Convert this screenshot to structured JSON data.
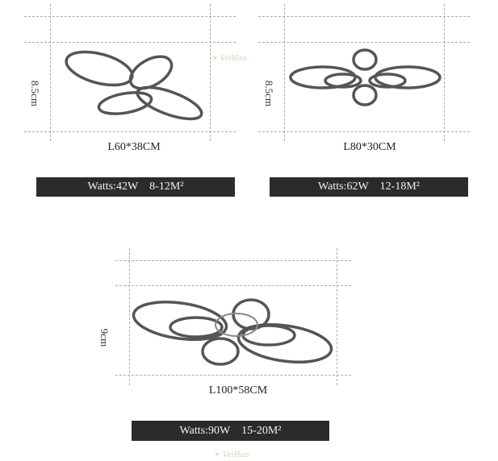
{
  "watermark": "VeiHao",
  "products": [
    {
      "height": "8.5cm",
      "size": "L60*38CM",
      "watts": "Watts:42W",
      "area": "8-12M²"
    },
    {
      "height": "8.5cm",
      "size": "L80*30CM",
      "watts": "Watts:62W",
      "area": "12-18M²"
    },
    {
      "height": "9cm",
      "size": "L100*58CM",
      "watts": "Watts:90W",
      "area": "15-20M²"
    }
  ]
}
